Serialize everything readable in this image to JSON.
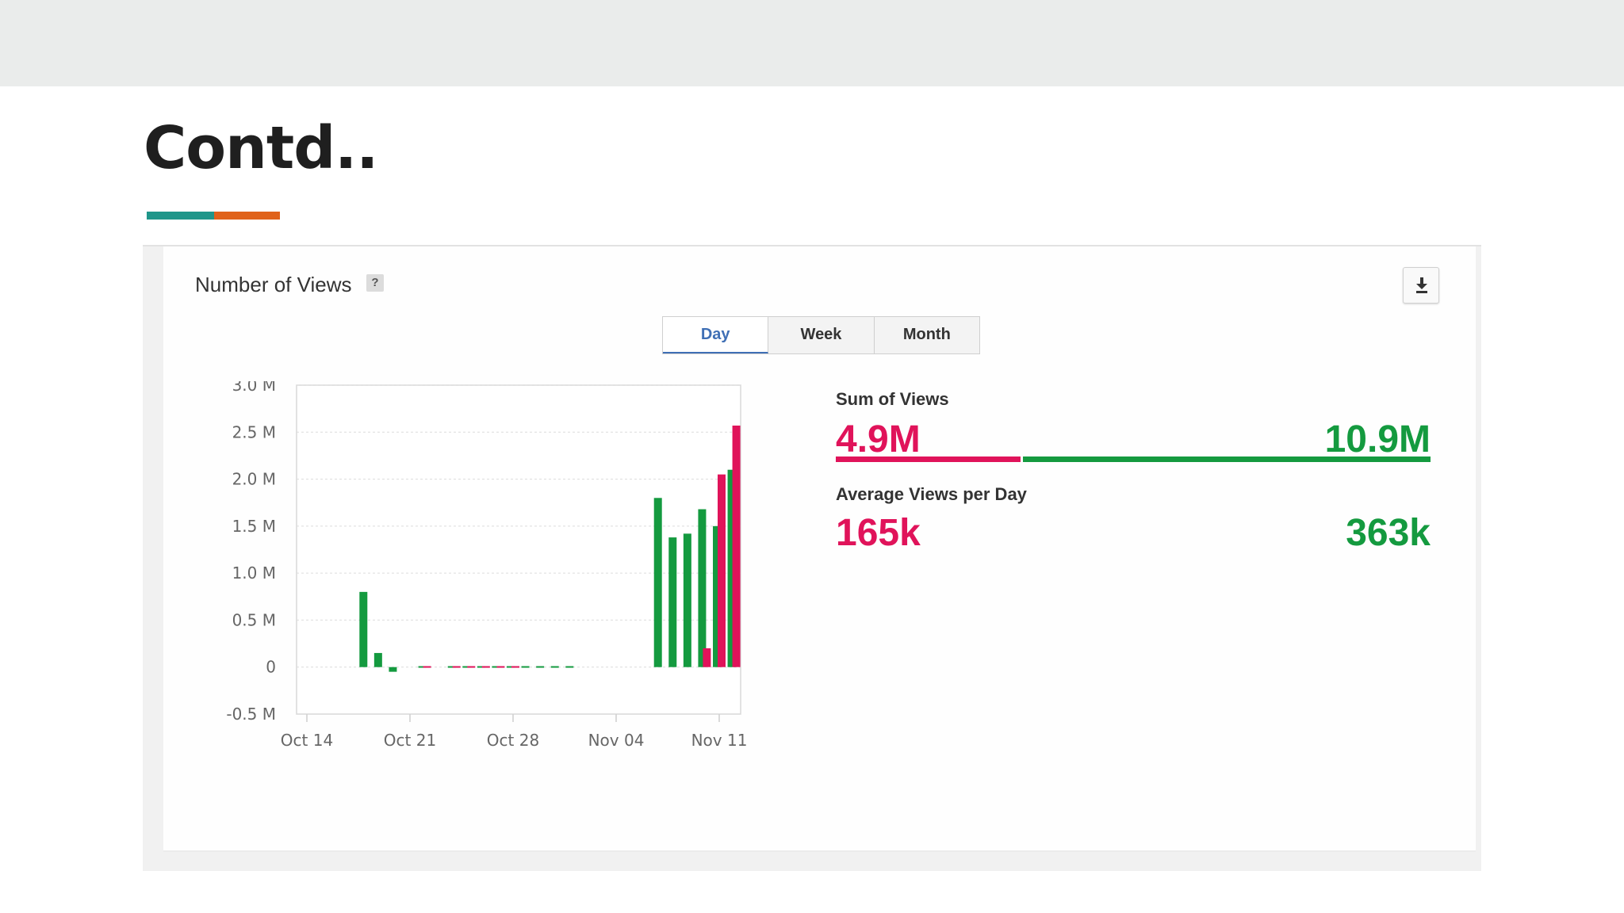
{
  "slide": {
    "title": "Contd..",
    "accent_colors": [
      "#1f968a",
      "#e0621a"
    ]
  },
  "panel": {
    "title": "Number of Views",
    "help_icon_glyph": "?",
    "download_icon": "download-icon",
    "tabs": [
      {
        "label": "Day",
        "active": true
      },
      {
        "label": "Week",
        "active": false
      },
      {
        "label": "Month",
        "active": false
      }
    ]
  },
  "stats": {
    "sum": {
      "label": "Sum of Views",
      "left_value": "4.9M",
      "right_value": "10.9M",
      "left_share": 0.31
    },
    "average": {
      "label": "Average Views per Day",
      "left_value": "165k",
      "right_value": "363k"
    },
    "colors": {
      "pink": "#e0135a",
      "green": "#149a3f"
    }
  },
  "chart_data": {
    "type": "bar",
    "y_ticks": [
      "3.0 M",
      "2.5 M",
      "2.0 M",
      "1.5 M",
      "1.0 M",
      "0.5 M",
      "0",
      "-0.5 M"
    ],
    "x_ticks": [
      "Oct 14",
      "Oct 21",
      "Oct 28",
      "Nov 04",
      "Nov 11"
    ],
    "ylim": [
      -0.5,
      3.0
    ],
    "grid": true,
    "series": [
      {
        "color": "#149a3f",
        "points": [
          {
            "x": "2018-10-18",
            "y": 0.8
          },
          {
            "x": "2018-10-19",
            "y": 0.15
          },
          {
            "x": "2018-10-20",
            "y": -0.05
          },
          {
            "x": "2018-10-22",
            "y": 0.01
          },
          {
            "x": "2018-10-24",
            "y": 0.01
          },
          {
            "x": "2018-10-25",
            "y": 0.01
          },
          {
            "x": "2018-10-26",
            "y": 0.01
          },
          {
            "x": "2018-10-27",
            "y": 0.01
          },
          {
            "x": "2018-10-28",
            "y": 0.01
          },
          {
            "x": "2018-10-29",
            "y": 0.01
          },
          {
            "x": "2018-10-30",
            "y": 0.01
          },
          {
            "x": "2018-10-31",
            "y": 0.01
          },
          {
            "x": "2018-11-01",
            "y": 0.01
          },
          {
            "x": "2018-11-07",
            "y": 1.8
          },
          {
            "x": "2018-11-08",
            "y": 1.38
          },
          {
            "x": "2018-11-09",
            "y": 1.42
          },
          {
            "x": "2018-11-10",
            "y": 1.68
          },
          {
            "x": "2018-11-11",
            "y": 1.5
          },
          {
            "x": "2018-11-12",
            "y": 2.1
          }
        ]
      },
      {
        "color": "#e0135a",
        "points": [
          {
            "x": "2018-10-22",
            "y": 0.01
          },
          {
            "x": "2018-10-24",
            "y": 0.01
          },
          {
            "x": "2018-10-25",
            "y": 0.01
          },
          {
            "x": "2018-10-26",
            "y": 0.01
          },
          {
            "x": "2018-10-27",
            "y": 0.01
          },
          {
            "x": "2018-10-28",
            "y": 0.01
          },
          {
            "x": "2018-11-10",
            "y": 0.2
          },
          {
            "x": "2018-11-11",
            "y": 2.05
          },
          {
            "x": "2018-11-12",
            "y": 2.57
          }
        ]
      }
    ]
  }
}
